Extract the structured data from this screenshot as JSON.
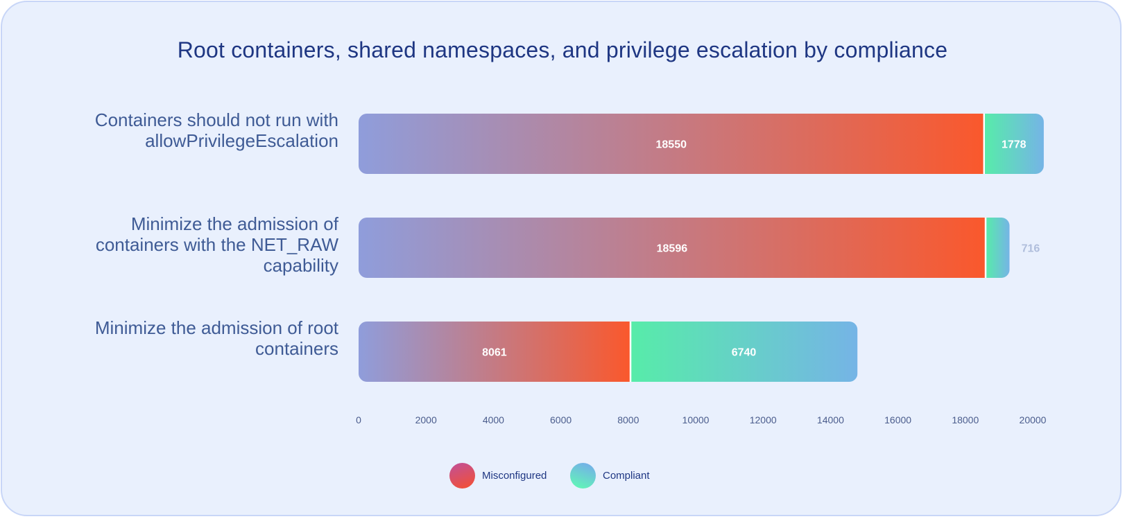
{
  "chart_data": {
    "type": "bar",
    "orientation": "horizontal",
    "stacked": true,
    "title": "Root containers, shared namespaces, and privilege escalation by compliance",
    "categories": [
      "Containers should not run with allowPrivilegeEscalation",
      "Minimize the admission of containers with the NET_RAW capability",
      "Minimize the admission of root containers"
    ],
    "series": [
      {
        "name": "Misconfigured",
        "values": [
          18550,
          18596,
          8061
        ]
      },
      {
        "name": "Compliant",
        "values": [
          1778,
          716,
          6740
        ]
      }
    ],
    "xlim": [
      0,
      20000
    ],
    "xticks": [
      0,
      2000,
      4000,
      6000,
      8000,
      10000,
      12000,
      14000,
      16000,
      18000,
      20000
    ],
    "xlabel": "",
    "ylabel": "",
    "legend": "bottom-center",
    "grid": false
  },
  "legend": {
    "items": [
      {
        "label": "Misconfigured",
        "colors": [
          "#c0509a",
          "#f0503a"
        ]
      },
      {
        "label": "Compliant",
        "colors": [
          "#76a8ee",
          "#62f4b8"
        ]
      }
    ]
  },
  "colors": {
    "misconfigured_start": "#8f9ddb",
    "misconfigured_end": "#fa582c",
    "compliant_start": "#57eca9",
    "compliant_end": "#75b4e6",
    "value_label_inside": "#ffffff",
    "value_label_outside": "#b0bedc",
    "tick_label": "#4a5c8c"
  }
}
